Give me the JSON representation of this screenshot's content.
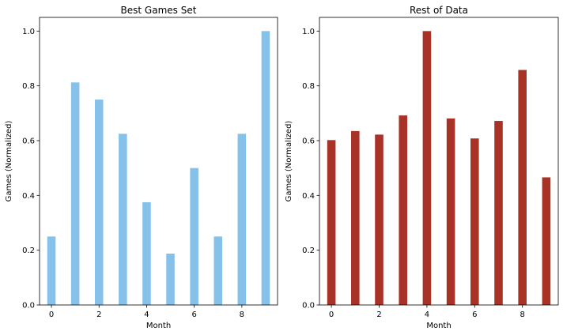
{
  "chart_data": [
    {
      "type": "bar",
      "title": "Best Games Set",
      "xlabel": "Month",
      "ylabel": "Games (Normalized)",
      "x": [
        0,
        1,
        2,
        3,
        4,
        5,
        6,
        7,
        8,
        9
      ],
      "values": [
        0.25,
        0.8125,
        0.75,
        0.625,
        0.375,
        0.1875,
        0.5,
        0.25,
        0.625,
        1.0
      ],
      "color": "#85c1e9",
      "xlim": [
        -0.5,
        9.5
      ],
      "ylim": [
        0,
        1.05
      ],
      "xticks": [
        0,
        2,
        4,
        6,
        8
      ],
      "yticks": [
        0.0,
        0.2,
        0.4,
        0.6,
        0.8,
        1.0
      ],
      "ytick_labels": [
        "0.0",
        "0.2",
        "0.4",
        "0.6",
        "0.8",
        "1.0"
      ],
      "grid": false,
      "legend": "none"
    },
    {
      "type": "bar",
      "title": "Rest of Data",
      "xlabel": "Month",
      "ylabel": "Games (Normalized)",
      "x": [
        0,
        1,
        2,
        3,
        4,
        5,
        6,
        7,
        8,
        9
      ],
      "values": [
        0.602,
        0.635,
        0.622,
        0.692,
        1.0,
        0.681,
        0.608,
        0.672,
        0.858,
        0.466
      ],
      "color": "#a93226",
      "xlim": [
        -0.5,
        9.5
      ],
      "ylim": [
        0,
        1.05
      ],
      "xticks": [
        0,
        2,
        4,
        6,
        8
      ],
      "yticks": [
        0.0,
        0.2,
        0.4,
        0.6,
        0.8,
        1.0
      ],
      "ytick_labels": [
        "0.0",
        "0.2",
        "0.4",
        "0.6",
        "0.8",
        "1.0"
      ],
      "grid": false,
      "legend": "none"
    }
  ]
}
